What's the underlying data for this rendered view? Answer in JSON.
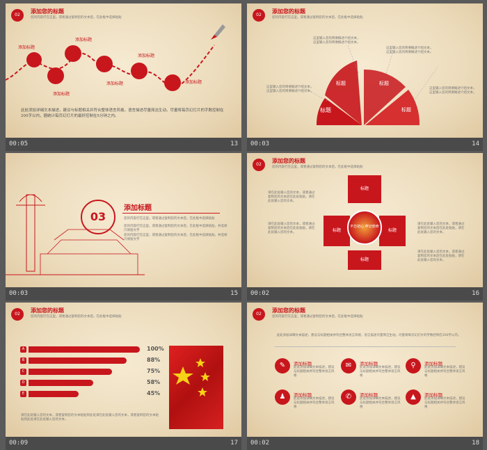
{
  "slides": [
    {
      "time": "00:05",
      "num": "13",
      "badge": "02",
      "title": "添加您的标题",
      "sub": "您的内容打在这里，或者通过复制您的文本后，在此框中选择粘贴",
      "nodes": [
        "添加标题",
        "添加标题",
        "添加标题",
        "添加标题",
        "添加标题",
        "添加标题"
      ],
      "body": "此处添加详细文本描述，建议与标题相关并符合整体语言风格，语言描述尽量简洁生动。尽量将每页幻灯片的字数控制在200字以内，据统计每页幻灯片的最好控制在5分钟之内。"
    },
    {
      "time": "00:03",
      "num": "14",
      "badge": "02",
      "title": "添加您的标题",
      "sub": "您的内容打在这里，或者通过复制您的文本后，在此框中选择粘贴",
      "fan_labels": [
        "标题",
        "标题",
        "标题",
        "标题"
      ],
      "text_blocks": [
        "这里输入您的简要概述介绍文本，这里输入您的简要概述介绍文本。",
        "这里输入您的简要概述介绍文本，这里输入您的简要概述介绍文本。",
        "这里输入您的简要概述介绍文本，这里输入您的简要概述介绍文本。",
        "这里输入您的简要概述介绍文本，这里输入您的简要概述介绍文本。"
      ]
    },
    {
      "time": "00:03",
      "num": "15",
      "section": "03",
      "title": "添加标题",
      "lines": [
        "您的内容打在这里，或者通过复制您的文本后，在此框中选择粘贴",
        "您的内容打在这里，或者通过复制您的文本后，在此框中选择粘贴，并选择只保留文字",
        "您的内容打在这里，或者通过复制您的文本后，在此框中选择粘贴，并选择只保留文字"
      ]
    },
    {
      "time": "00:02",
      "num": "16",
      "badge": "02",
      "title": "添加您的标题",
      "sub": "您的内容打在这里，或者通过复制您的文本后，在此框中选择粘贴",
      "boxes": [
        "标题",
        "标题",
        "标题",
        "标题"
      ],
      "center": "不忘初心 牢记使命",
      "text_blocks": [
        "请在此处输入您的文本，或者通过复制您的文本后在此处粘贴，请在此处输入您的文本。",
        "请在此处输入您的文本，或者通过复制您的文本后在此处粘贴，请在此处输入您的文本。",
        "请在此处输入您的文本，或者通过复制您的文本后在此处粘贴，请在此处输入您的文本。",
        "请在此处输入您的文本，或者通过复制您的文本后在此处粘贴，请在此处输入您的文本。"
      ]
    },
    {
      "time": "00:09",
      "num": "17",
      "badge": "02",
      "title": "添加您的标题",
      "sub": "您的内容打在这里，或者通过复制您的文本后，在此框中选择粘贴",
      "bars": [
        {
          "letter": "A",
          "pct": 100,
          "label": "100%"
        },
        {
          "letter": "B",
          "pct": 88,
          "label": "88%"
        },
        {
          "letter": "C",
          "pct": 75,
          "label": "75%"
        },
        {
          "letter": "D",
          "pct": 58,
          "label": "58%"
        },
        {
          "letter": "E",
          "pct": 45,
          "label": "45%"
        }
      ],
      "foot": "请在此处输入您的文本，或者复制您的文本粘贴到此处请在此处输入您的文本，或者复制您的文本粘贴到此处请在此处输入您的文本。"
    },
    {
      "time": "00:02",
      "num": "18",
      "badge": "02",
      "title": "添加您的标题",
      "sub": "您的内容打在这里，或者通过复制您的文本后，在此框中选择粘贴",
      "intro": "此处添加详细文本描述，建议与标题相关并符合整体语言风格，语言描述尽量简洁生动。尽量将每页幻灯片的字数控制在200字以内。",
      "items": [
        {
          "title": "添加标题",
          "icon": "✎"
        },
        {
          "title": "添加标题",
          "icon": "✉"
        },
        {
          "title": "添加标题",
          "icon": "⚲"
        },
        {
          "title": "添加标题",
          "icon": "♟"
        },
        {
          "title": "添加标题",
          "icon": "✆"
        },
        {
          "title": "添加标题",
          "icon": "▲"
        }
      ],
      "item_text": "此处添加详细文本描述，建议与标题相关并符合整体语言风格"
    }
  ],
  "colors": {
    "accent": "#c8161d",
    "paper": "#efe1c4",
    "statusbar": "#4a4a4a"
  }
}
